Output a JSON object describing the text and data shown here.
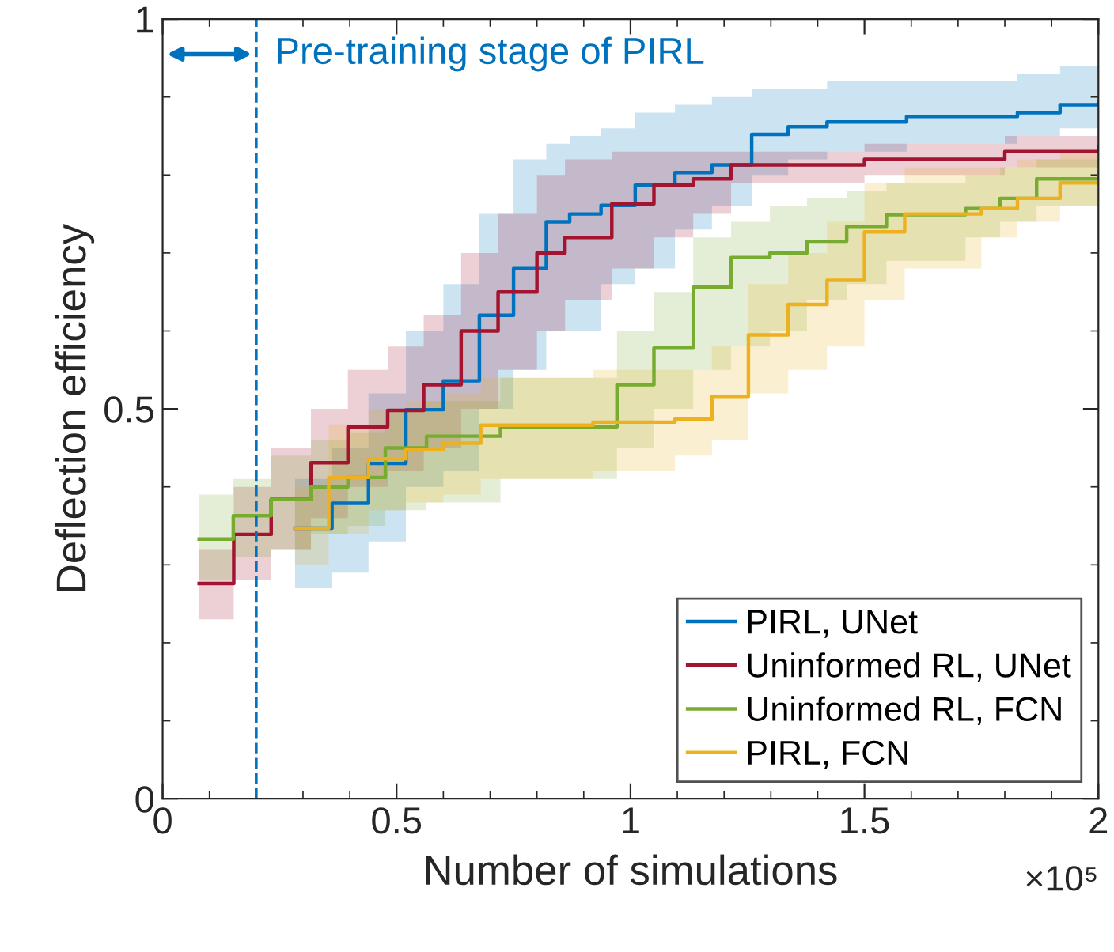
{
  "chart_data": {
    "type": "step",
    "xlabel": "Number of simulations",
    "ylabel": "Deflection efficiency",
    "xlim": [
      0,
      2
    ],
    "ylim": [
      0,
      1
    ],
    "xticks": [
      0,
      0.5,
      1,
      1.5,
      2
    ],
    "yticks": [
      0,
      0.5,
      1
    ],
    "grid": false,
    "legend": "bottom right",
    "line_style": "solid",
    "annotations": [
      "×10⁵"
    ],
    "ref_lines": [
      {
        "axis": "x",
        "value": 0.2,
        "label": "Pre-training stage of PIRL",
        "color": "#0072bd",
        "line_style": "dashed"
      }
    ],
    "series": [
      {
        "name": "PIRL, UNet",
        "color": "#0072bd",
        "x": [
          0.283,
          0.362,
          0.44,
          0.52,
          0.6,
          0.677,
          0.75,
          0.82,
          0.87,
          0.937,
          1.01,
          1.095,
          1.174,
          1.259,
          1.337,
          1.42,
          1.59,
          1.827,
          1.918,
          2.0
        ],
        "values": [
          0.347,
          0.379,
          0.43,
          0.499,
          0.536,
          0.62,
          0.68,
          0.74,
          0.75,
          0.761,
          0.787,
          0.803,
          0.813,
          0.852,
          0.862,
          0.868,
          0.875,
          0.88,
          0.89,
          0.893
        ],
        "lower": [
          0.27,
          0.29,
          0.33,
          0.4,
          0.42,
          0.5,
          0.55,
          0.6,
          0.6,
          0.66,
          0.68,
          0.73,
          0.76,
          0.8,
          0.82,
          0.83,
          0.84,
          0.85,
          0.86,
          0.86
        ],
        "upper": [
          0.41,
          0.45,
          0.52,
          0.6,
          0.66,
          0.75,
          0.82,
          0.84,
          0.85,
          0.86,
          0.88,
          0.89,
          0.9,
          0.91,
          0.91,
          0.92,
          0.92,
          0.93,
          0.94,
          0.94
        ]
      },
      {
        "name": "Uninformed RL, UNet",
        "color": "#a2142f",
        "x": [
          0.078,
          0.152,
          0.232,
          0.317,
          0.396,
          0.481,
          0.558,
          0.638,
          0.717,
          0.8,
          0.86,
          0.96,
          1.05,
          1.134,
          1.215,
          1.5,
          1.8,
          2.0
        ],
        "values": [
          0.276,
          0.339,
          0.384,
          0.431,
          0.477,
          0.498,
          0.531,
          0.6,
          0.65,
          0.7,
          0.72,
          0.763,
          0.787,
          0.795,
          0.813,
          0.82,
          0.83,
          0.836
        ],
        "lower": [
          0.23,
          0.28,
          0.32,
          0.36,
          0.4,
          0.42,
          0.45,
          0.5,
          0.55,
          0.6,
          0.64,
          0.68,
          0.72,
          0.75,
          0.79,
          0.8,
          0.81,
          0.82
        ],
        "upper": [
          0.32,
          0.4,
          0.45,
          0.5,
          0.55,
          0.58,
          0.62,
          0.7,
          0.75,
          0.8,
          0.82,
          0.83,
          0.83,
          0.83,
          0.83,
          0.84,
          0.85,
          0.85
        ]
      },
      {
        "name": "Uninformed RL, FCN",
        "color": "#77ac30",
        "x": [
          0.078,
          0.151,
          0.232,
          0.317,
          0.396,
          0.476,
          0.564,
          0.722,
          0.971,
          1.05,
          1.134,
          1.215,
          1.298,
          1.377,
          1.462,
          1.547,
          1.716,
          1.79,
          1.868,
          2.0
        ],
        "values": [
          0.333,
          0.363,
          0.384,
          0.4,
          0.412,
          0.45,
          0.465,
          0.477,
          0.531,
          0.578,
          0.656,
          0.694,
          0.7,
          0.715,
          0.734,
          0.749,
          0.757,
          0.77,
          0.795,
          0.8
        ],
        "lower": [
          0.28,
          0.31,
          0.32,
          0.34,
          0.35,
          0.37,
          0.38,
          0.41,
          0.45,
          0.5,
          0.55,
          0.58,
          0.6,
          0.64,
          0.66,
          0.69,
          0.72,
          0.74,
          0.76,
          0.77
        ],
        "upper": [
          0.39,
          0.41,
          0.44,
          0.46,
          0.47,
          0.5,
          0.51,
          0.54,
          0.6,
          0.65,
          0.72,
          0.74,
          0.76,
          0.77,
          0.78,
          0.79,
          0.8,
          0.81,
          0.82,
          0.83
        ]
      },
      {
        "name": "PIRL, FCN",
        "color": "#edb120",
        "x": [
          0.283,
          0.355,
          0.44,
          0.52,
          0.6,
          0.68,
          0.92,
          1.095,
          1.174,
          1.252,
          1.337,
          1.42,
          1.5,
          1.586,
          1.75,
          1.827,
          1.918,
          2.0
        ],
        "values": [
          0.347,
          0.412,
          0.436,
          0.448,
          0.456,
          0.479,
          0.483,
          0.487,
          0.516,
          0.595,
          0.634,
          0.665,
          0.727,
          0.75,
          0.757,
          0.77,
          0.79,
          0.8
        ],
        "lower": [
          0.3,
          0.34,
          0.37,
          0.38,
          0.39,
          0.41,
          0.42,
          0.44,
          0.46,
          0.52,
          0.55,
          0.58,
          0.64,
          0.68,
          0.72,
          0.74,
          0.76,
          0.77
        ],
        "upper": [
          0.4,
          0.48,
          0.5,
          0.51,
          0.52,
          0.54,
          0.55,
          0.55,
          0.58,
          0.66,
          0.7,
          0.74,
          0.79,
          0.81,
          0.81,
          0.82,
          0.83,
          0.84
        ]
      }
    ]
  }
}
